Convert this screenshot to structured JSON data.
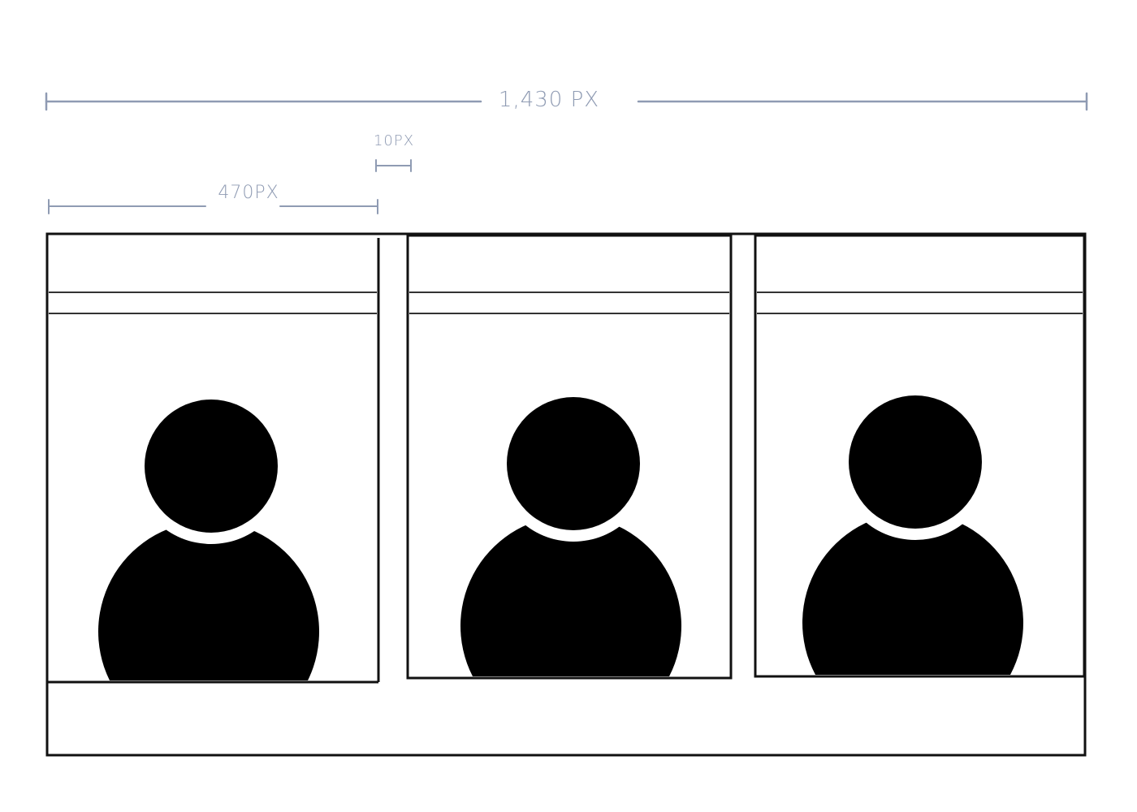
{
  "dimensions": {
    "total_width_label": "1,430 PX",
    "card_width_label": "470PX",
    "gutter_label": "10PX"
  },
  "cards": [
    {
      "name": "profile-card-1",
      "icon": "user-avatar-icon"
    },
    {
      "name": "profile-card-2",
      "icon": "user-avatar-icon"
    },
    {
      "name": "profile-card-3",
      "icon": "user-avatar-icon"
    }
  ],
  "colors": {
    "annotation": "#8f9bb3",
    "stroke": "#111111",
    "fill": "#000000",
    "background": "#ffffff"
  }
}
